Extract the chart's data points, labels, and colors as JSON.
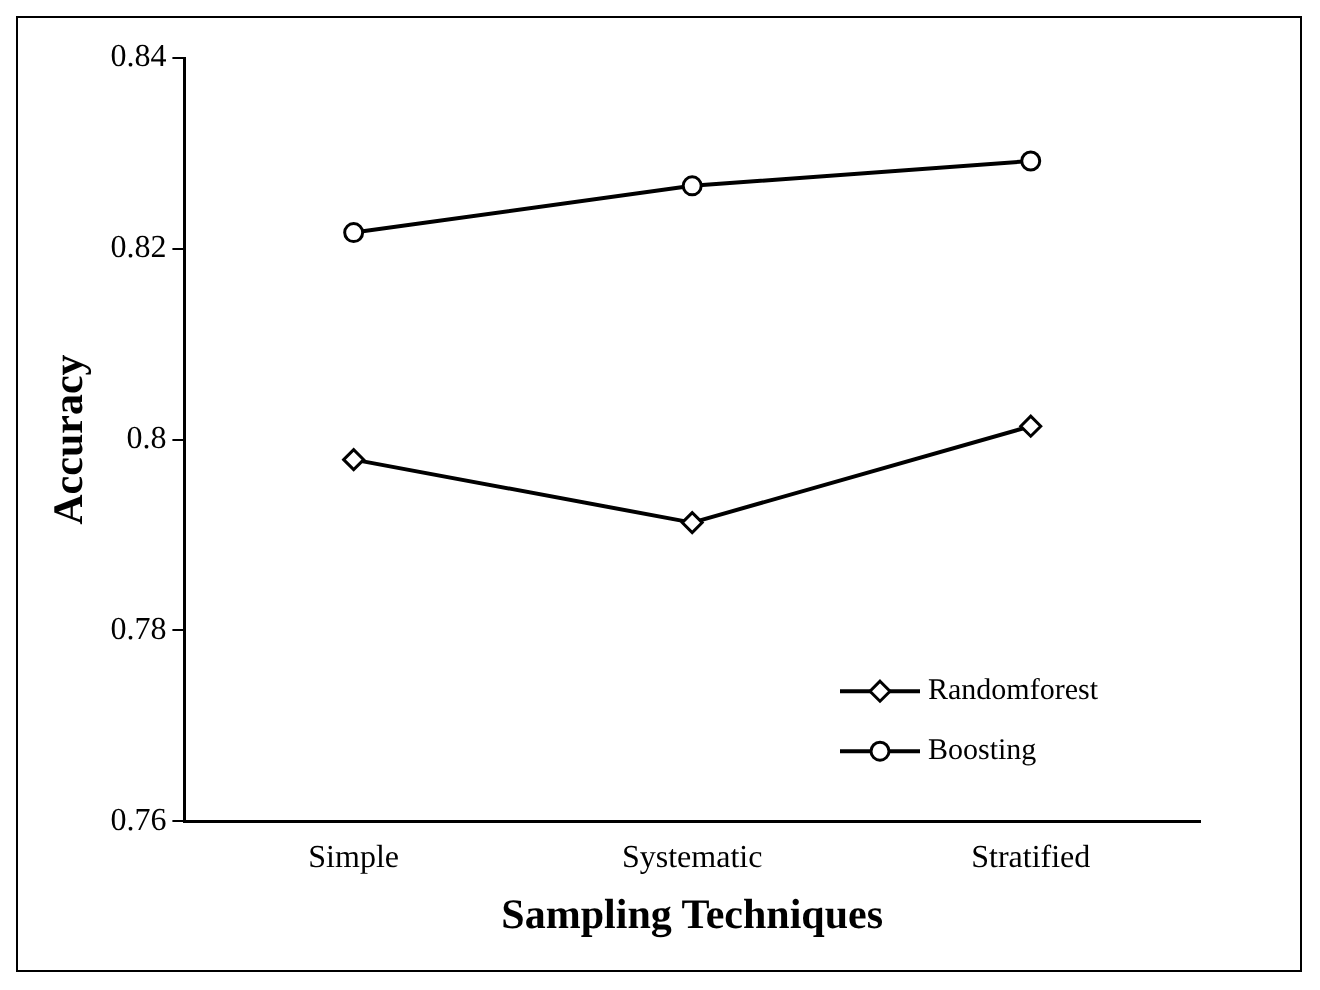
{
  "chart_data": {
    "type": "line",
    "xlabel": "Sampling Techniques",
    "ylabel": "Accuracy",
    "categories": [
      "Simple",
      "Systematic",
      "Stratified"
    ],
    "series": [
      {
        "name": "Randomforest",
        "color": "#000000",
        "marker": "diamond",
        "values": [
          0.7979,
          0.7913,
          0.8014
        ]
      },
      {
        "name": "Boosting",
        "color": "#000000",
        "marker": "circle",
        "values": [
          0.8217,
          0.8266,
          0.8292
        ]
      }
    ],
    "ylim": [
      0.76,
      0.84
    ],
    "yticks": [
      0.76,
      0.78,
      {
        "value": 0.8,
        "label": "0.8"
      },
      0.82,
      0.84
    ],
    "grid": false,
    "legend": "bottom right",
    "line_style": "solid"
  }
}
